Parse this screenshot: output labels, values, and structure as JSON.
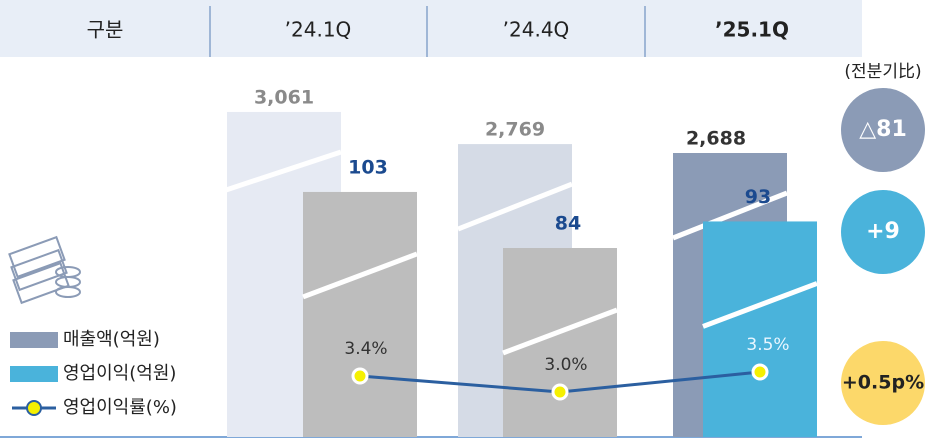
{
  "chart_data": {
    "type": "bar",
    "header_label": "구분",
    "categories": [
      "’24.1Q",
      "’24.4Q",
      "’25.1Q"
    ],
    "series": [
      {
        "name": "매출액(억원)",
        "color": "#8b9bb6",
        "colors": [
          "#e6eaf3",
          "#d5dbe6",
          "#8b9bb6"
        ],
        "values": [
          3061,
          2769,
          2688
        ],
        "value_labels": [
          "3,061",
          "2,769",
          "2,688"
        ]
      },
      {
        "name": "영업이익(억원)",
        "color": "#4ab3db",
        "colors": [
          "#bdbdbd",
          "#bdbdbd",
          "#4ab3db"
        ],
        "values": [
          103,
          84,
          93
        ]
      },
      {
        "name": "영업이익률(%)",
        "type": "line",
        "color": "#2b5fa0",
        "values": [
          3.4,
          3.0,
          3.5
        ],
        "value_labels": [
          "3.4%",
          "3.0%",
          "3.5%"
        ]
      }
    ],
    "comparison_label": "(전분기比)",
    "changes": [
      "△81",
      "+9",
      "+0.5p%"
    ]
  }
}
